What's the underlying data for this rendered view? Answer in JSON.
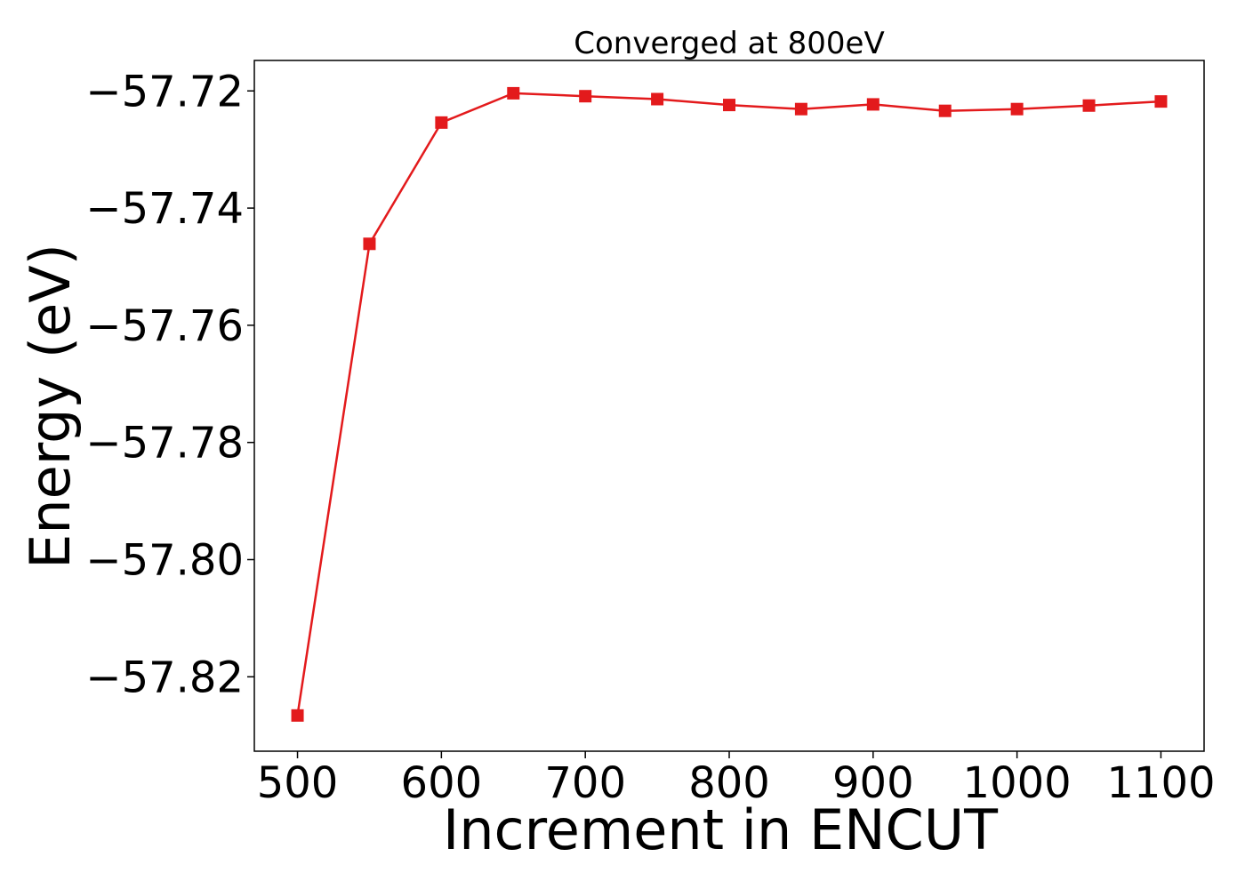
{
  "chart_data": {
    "type": "line",
    "title": "Converged at 800eV",
    "xlabel": "Increment in ENCUT",
    "ylabel": "Energy (eV)",
    "xlim": [
      470,
      1130
    ],
    "ylim": [
      -57.8327,
      -57.7148
    ],
    "x_ticks": [
      500,
      600,
      700,
      800,
      900,
      1000,
      1100
    ],
    "x_tick_labels": [
      "500",
      "600",
      "700",
      "800",
      "900",
      "1000",
      "1100"
    ],
    "y_ticks": [
      -57.72,
      -57.74,
      -57.76,
      -57.78,
      -57.8,
      -57.82
    ],
    "y_tick_labels": [
      "−57.72",
      "−57.74",
      "−57.76",
      "−57.78",
      "−57.80",
      "−57.82"
    ],
    "grid": false,
    "legend": "none",
    "series": [
      {
        "color": "#e31a1c",
        "marker": "square",
        "x": [
          500,
          550,
          600,
          650,
          700,
          750,
          800,
          850,
          900,
          950,
          1000,
          1050,
          1100
        ],
        "y": [
          -57.8266,
          -57.7461,
          -57.7254,
          -57.7204,
          -57.7209,
          -57.7214,
          -57.7224,
          -57.7231,
          -57.7223,
          -57.7234,
          -57.7231,
          -57.7225,
          -57.7218
        ]
      }
    ]
  }
}
